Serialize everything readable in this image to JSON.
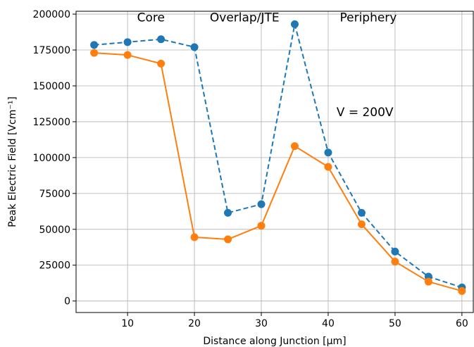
{
  "chart_data": {
    "type": "line",
    "title": "",
    "xlabel": "Distance along Junction [μm]",
    "ylabel": "Peak Electric Field [Vcm⁻¹]",
    "xlim": [
      2.3,
      61.7
    ],
    "ylim": [
      -8000,
      202000
    ],
    "grid": true,
    "x_ticks": [
      10,
      20,
      30,
      40,
      50,
      60
    ],
    "y_ticks": [
      0,
      25000,
      50000,
      75000,
      100000,
      125000,
      150000,
      175000,
      200000
    ],
    "x": [
      5,
      10,
      15,
      20,
      25,
      30,
      35,
      40,
      45,
      50,
      55,
      60
    ],
    "series": [
      {
        "color": "#1f77b4",
        "linestyle": "dashed",
        "marker": "circle",
        "values": [
          178500,
          180500,
          182500,
          177000,
          61500,
          67500,
          193000,
          103500,
          61500,
          34500,
          17000,
          9500
        ]
      },
      {
        "color": "#ff7f0e",
        "linestyle": "solid",
        "marker": "circle",
        "values": [
          173000,
          171500,
          165500,
          44500,
          43000,
          52500,
          108000,
          93500,
          53500,
          27500,
          13500,
          7000
        ]
      }
    ],
    "annotations": [
      {
        "text": "Core",
        "x": 13.5,
        "y": 195000
      },
      {
        "text": "Overlap/JTE",
        "x": 27.5,
        "y": 195000
      },
      {
        "text": "Periphery",
        "x": 46,
        "y": 195000
      },
      {
        "text": "V = 200V",
        "x": 45.5,
        "y": 129000
      }
    ]
  }
}
